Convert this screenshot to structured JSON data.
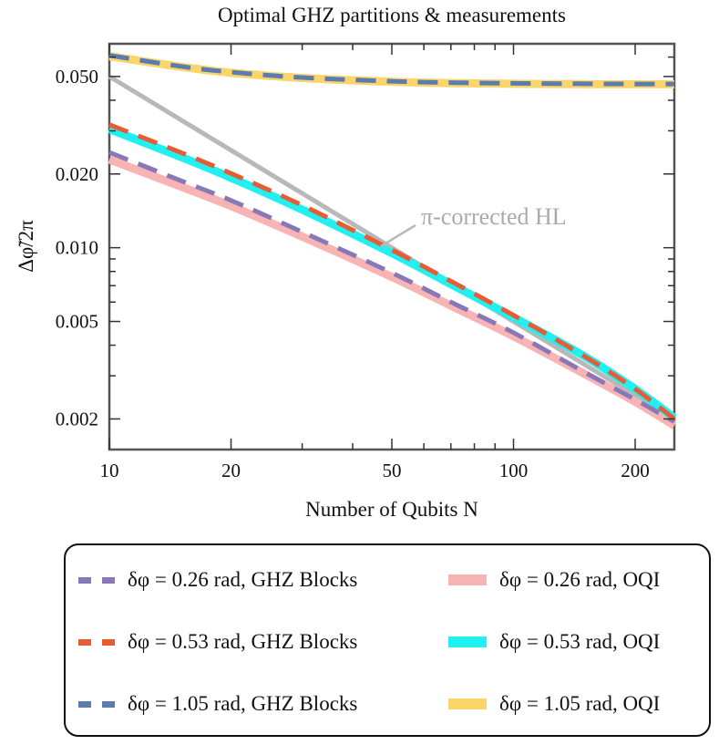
{
  "chart_data": {
    "type": "line",
    "title": "Optimal GHZ partitions & measurements",
    "xlabel": "Number of Qubits N",
    "ylabel": "Δφ̃/2π",
    "xscale": "log",
    "yscale": "log",
    "xlim": [
      10,
      250
    ],
    "ylim": [
      0.0015,
      0.068
    ],
    "xticks": [
      10,
      20,
      50,
      100,
      200
    ],
    "xtick_labels": [
      "10",
      "20",
      "50",
      "100",
      "200"
    ],
    "yticks": [
      0.002,
      0.005,
      0.01,
      0.02,
      0.05
    ],
    "ytick_labels": [
      "0.002",
      "0.005",
      "0.010",
      "0.020",
      "0.050"
    ],
    "annotation": "π-corrected HL",
    "reference_line": {
      "name": "π-corrected HL",
      "color": "#b8b8b8",
      "x": [
        10,
        250
      ],
      "y": [
        0.05,
        0.002
      ]
    },
    "series": [
      {
        "name": "δφ = 0.26 rad, OQI",
        "style": "solid",
        "color": "#f8b4b4",
        "x": [
          10,
          15,
          20,
          30,
          50,
          70,
          100,
          150,
          200,
          250
        ],
        "y": [
          0.0229,
          0.0178,
          0.0148,
          0.0111,
          0.0076,
          0.0058,
          0.00435,
          0.00305,
          0.00235,
          0.00188
        ]
      },
      {
        "name": "δφ = 0.53 rad, OQI",
        "style": "solid",
        "color": "#22f0f0",
        "x": [
          10,
          15,
          20,
          30,
          50,
          70,
          100,
          150,
          200,
          250
        ],
        "y": [
          0.0305,
          0.0235,
          0.0193,
          0.0143,
          0.0095,
          0.0071,
          0.0052,
          0.0036,
          0.00265,
          0.00202
        ]
      },
      {
        "name": "δφ = 1.05 rad, OQI",
        "style": "solid",
        "color": "#fbd46a",
        "x": [
          10,
          15,
          20,
          30,
          50,
          70,
          100,
          150,
          200,
          250
        ],
        "y": [
          0.0605,
          0.0548,
          0.0518,
          0.0493,
          0.0476,
          0.047,
          0.0467,
          0.0465,
          0.0465,
          0.0465
        ]
      },
      {
        "name": "δφ = 0.26 rad, GHZ Blocks",
        "style": "dashed",
        "color": "#8878b8",
        "x": [
          10,
          15,
          20,
          30,
          50,
          70,
          100,
          150,
          200,
          250
        ],
        "y": [
          0.0245,
          0.0188,
          0.0156,
          0.0116,
          0.0079,
          0.006,
          0.0045,
          0.0031,
          0.0024,
          0.00195
        ]
      },
      {
        "name": "δφ = 0.53 rad, GHZ Blocks",
        "style": "dashed",
        "color": "#e85c35",
        "x": [
          10,
          15,
          20,
          30,
          50,
          70,
          100,
          150,
          200,
          250
        ],
        "y": [
          0.0318,
          0.0245,
          0.0201,
          0.0149,
          0.0098,
          0.0073,
          0.0053,
          0.0036,
          0.00265,
          0.002
        ]
      },
      {
        "name": "δφ = 1.05 rad, GHZ Blocks",
        "style": "dashed",
        "color": "#5a7cb0",
        "x": [
          10,
          15,
          20,
          30,
          50,
          70,
          100,
          150,
          200,
          250
        ],
        "y": [
          0.061,
          0.055,
          0.0521,
          0.0495,
          0.0478,
          0.0472,
          0.0469,
          0.0467,
          0.0466,
          0.0466
        ]
      }
    ]
  },
  "legend": {
    "entries": [
      {
        "label": "δφ = 0.26 rad, GHZ Blocks",
        "color": "#8878b8",
        "style": "dashed"
      },
      {
        "label": "δφ = 0.26 rad, OQI",
        "color": "#f8b4b4",
        "style": "solid"
      },
      {
        "label": "δφ = 0.53 rad, GHZ Blocks",
        "color": "#e85c35",
        "style": "dashed"
      },
      {
        "label": "δφ = 0.53 rad, OQI",
        "color": "#22f0f0",
        "style": "solid"
      },
      {
        "label": "δφ = 1.05 rad, GHZ Blocks",
        "color": "#5a7cb0",
        "style": "dashed"
      },
      {
        "label": "δφ = 1.05 rad, OQI",
        "color": "#fbd46a",
        "style": "solid"
      }
    ]
  }
}
